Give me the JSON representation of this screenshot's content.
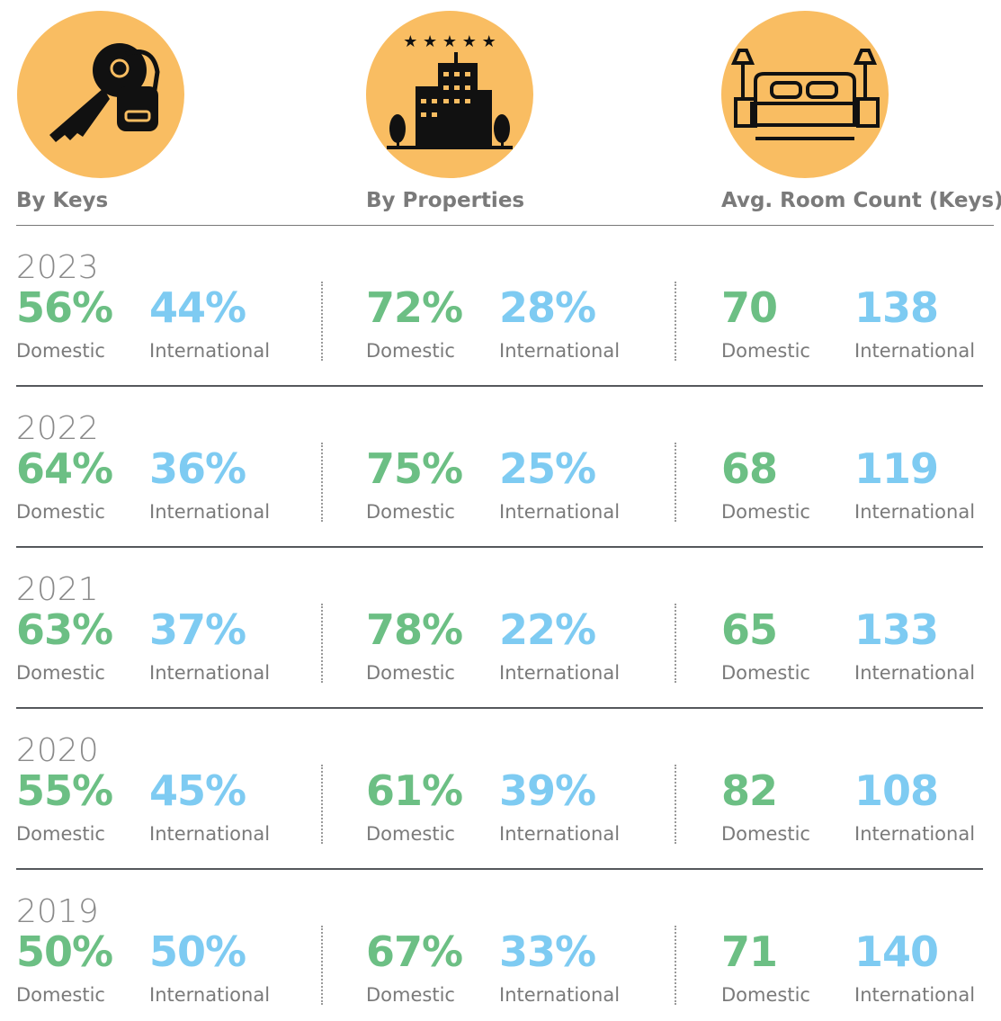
{
  "columns": [
    {
      "title": "By Keys"
    },
    {
      "title": "By Properties"
    },
    {
      "title": "Avg. Room Count (Keys)"
    }
  ],
  "rows": [
    {
      "year": "2023",
      "groups": [
        [
          {
            "value": "56%",
            "label": "Domestic"
          },
          {
            "value": "44%",
            "label": "International"
          }
        ],
        [
          {
            "value": "72%",
            "label": "Domestic"
          },
          {
            "value": "28%",
            "label": "International"
          }
        ],
        [
          {
            "value": "70",
            "label": "Domestic"
          },
          {
            "value": "138",
            "label": "International"
          }
        ]
      ]
    },
    {
      "year": "2022",
      "groups": [
        [
          {
            "value": "64%",
            "label": "Domestic"
          },
          {
            "value": "36%",
            "label": "International"
          }
        ],
        [
          {
            "value": "75%",
            "label": "Domestic"
          },
          {
            "value": "25%",
            "label": "International"
          }
        ],
        [
          {
            "value": "68",
            "label": "Domestic"
          },
          {
            "value": "119",
            "label": "International"
          }
        ]
      ]
    },
    {
      "year": "2021",
      "groups": [
        [
          {
            "value": "63%",
            "label": "Domestic"
          },
          {
            "value": "37%",
            "label": "International"
          }
        ],
        [
          {
            "value": "78%",
            "label": "Domestic"
          },
          {
            "value": "22%",
            "label": "International"
          }
        ],
        [
          {
            "value": "65",
            "label": "Domestic"
          },
          {
            "value": "133",
            "label": "International"
          }
        ]
      ]
    },
    {
      "year": "2020",
      "groups": [
        [
          {
            "value": "55%",
            "label": "Domestic"
          },
          {
            "value": "45%",
            "label": "International"
          }
        ],
        [
          {
            "value": "61%",
            "label": "Domestic"
          },
          {
            "value": "39%",
            "label": "International"
          }
        ],
        [
          {
            "value": "82",
            "label": "Domestic"
          },
          {
            "value": "108",
            "label": "International"
          }
        ]
      ]
    },
    {
      "year": "2019",
      "groups": [
        [
          {
            "value": "50%",
            "label": "Domestic"
          },
          {
            "value": "50%",
            "label": "International"
          }
        ],
        [
          {
            "value": "67%",
            "label": "Domestic"
          },
          {
            "value": "33%",
            "label": "International"
          }
        ],
        [
          {
            "value": "71",
            "label": "Domestic"
          },
          {
            "value": "140",
            "label": "International"
          }
        ]
      ]
    }
  ]
}
